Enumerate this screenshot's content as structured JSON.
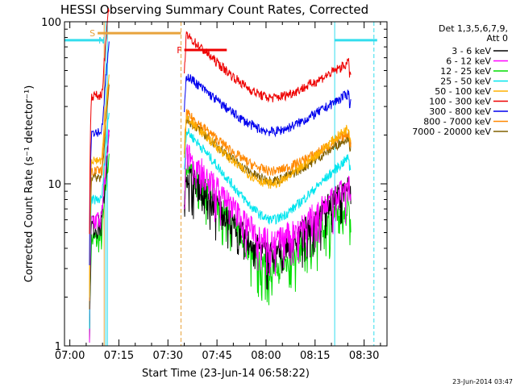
{
  "chart_data": {
    "type": "line",
    "title": "HESSI Observing Summary Count Rates, Corrected",
    "xlabel": "Start Time (23-Jun-14 06:58:22)",
    "ylabel": "Corrected Count Rate (s⁻¹ detector⁻¹)",
    "y_scale": "log",
    "ylim": [
      1,
      100
    ],
    "xlim": [
      "06:58:22",
      "08:37:00"
    ],
    "x_ticks": [
      "07:00",
      "07:15",
      "07:30",
      "07:45",
      "08:00",
      "08:15",
      "08:30"
    ],
    "y_ticks": [
      "1",
      "10",
      "100"
    ],
    "legend_header": [
      "Det 1,3,5,6,7,9,",
      "Att 0"
    ],
    "legend_position": "right",
    "timestamp": "23-Jun-2014 03:47",
    "colors": {
      "3-6": "#000000",
      "6-12": "#ff00ff",
      "12-25": "#00dd00",
      "25-50": "#00e5ee",
      "50-100": "#ffb000",
      "100-300": "#ee0000",
      "300-800": "#0000ee",
      "800-7000": "#ff8800",
      "7000-20000": "#806000",
      "saa": "#33ddee"
    },
    "flags": [
      {
        "label": "S",
        "color": "#e8a33c",
        "y": 85,
        "start": "07:08:30",
        "end": "07:34:00"
      },
      {
        "label": "N",
        "color": "#33ddee",
        "y": 77,
        "start": "07:11:30",
        "end": "07:11:30"
      },
      {
        "label": "F",
        "color": "#ee0000",
        "y": 67,
        "start": "07:35:00",
        "end": "07:48:00"
      },
      {
        "label": "",
        "color": "#33ddee",
        "y": 77,
        "start": "06:58:22",
        "end": "07:10:30"
      },
      {
        "label": "",
        "color": "#33ddee",
        "y": 77,
        "start": "08:21:00",
        "end": "08:34:00"
      }
    ],
    "vlines": [
      {
        "time": "07:10:30",
        "color": "#e8a33c",
        "style": "solid"
      },
      {
        "time": "07:11:00",
        "color": "#33ddee",
        "style": "solid"
      },
      {
        "time": "07:11:30",
        "color": "#33ddee",
        "style": "solid"
      },
      {
        "time": "07:34:00",
        "color": "#e8a33c",
        "style": "dashed"
      },
      {
        "time": "08:21:00",
        "color": "#33ddee",
        "style": "solid"
      },
      {
        "time": "08:33:00",
        "color": "#33ddee",
        "style": "dashed"
      }
    ],
    "segments": [
      [
        "07:06:00",
        "07:12:00"
      ],
      [
        "07:35:00",
        "08:26:00"
      ]
    ],
    "series": [
      {
        "name": "3 - 6 keV",
        "key": "3-6",
        "pre": 5.5,
        "post_start": 12,
        "min": 3.8,
        "end": 10
      },
      {
        "name": "6 - 12 keV",
        "key": "6-12",
        "pre": 6,
        "post_start": 16,
        "min": 4.5,
        "end": 10
      },
      {
        "name": "12 - 25 keV",
        "key": "12-25",
        "pre": 4.5,
        "post_start": 14,
        "min": 3,
        "end": 8
      },
      {
        "name": "25 - 50 keV",
        "key": "25-50",
        "pre": 8,
        "post_start": 22,
        "min": 6,
        "end": 15
      },
      {
        "name": "50 - 100 keV",
        "key": "50-100",
        "pre": 14,
        "post_start": 26,
        "min": 10,
        "end": 23
      },
      {
        "name": "100 - 300 keV",
        "key": "100-300",
        "pre": 35,
        "post_start": 85,
        "min": 34,
        "end": 57
      },
      {
        "name": "300 - 800 keV",
        "key": "300-800",
        "pre": 21,
        "post_start": 48,
        "min": 21,
        "end": 37
      },
      {
        "name": "800 - 7000 keV",
        "key": "800-7000",
        "pre": 12,
        "post_start": 28,
        "min": 12,
        "end": 21
      },
      {
        "name": "7000 - 20000 keV",
        "key": "7000-20000",
        "pre": 11,
        "post_start": 26,
        "min": 10.5,
        "end": 20
      }
    ]
  }
}
